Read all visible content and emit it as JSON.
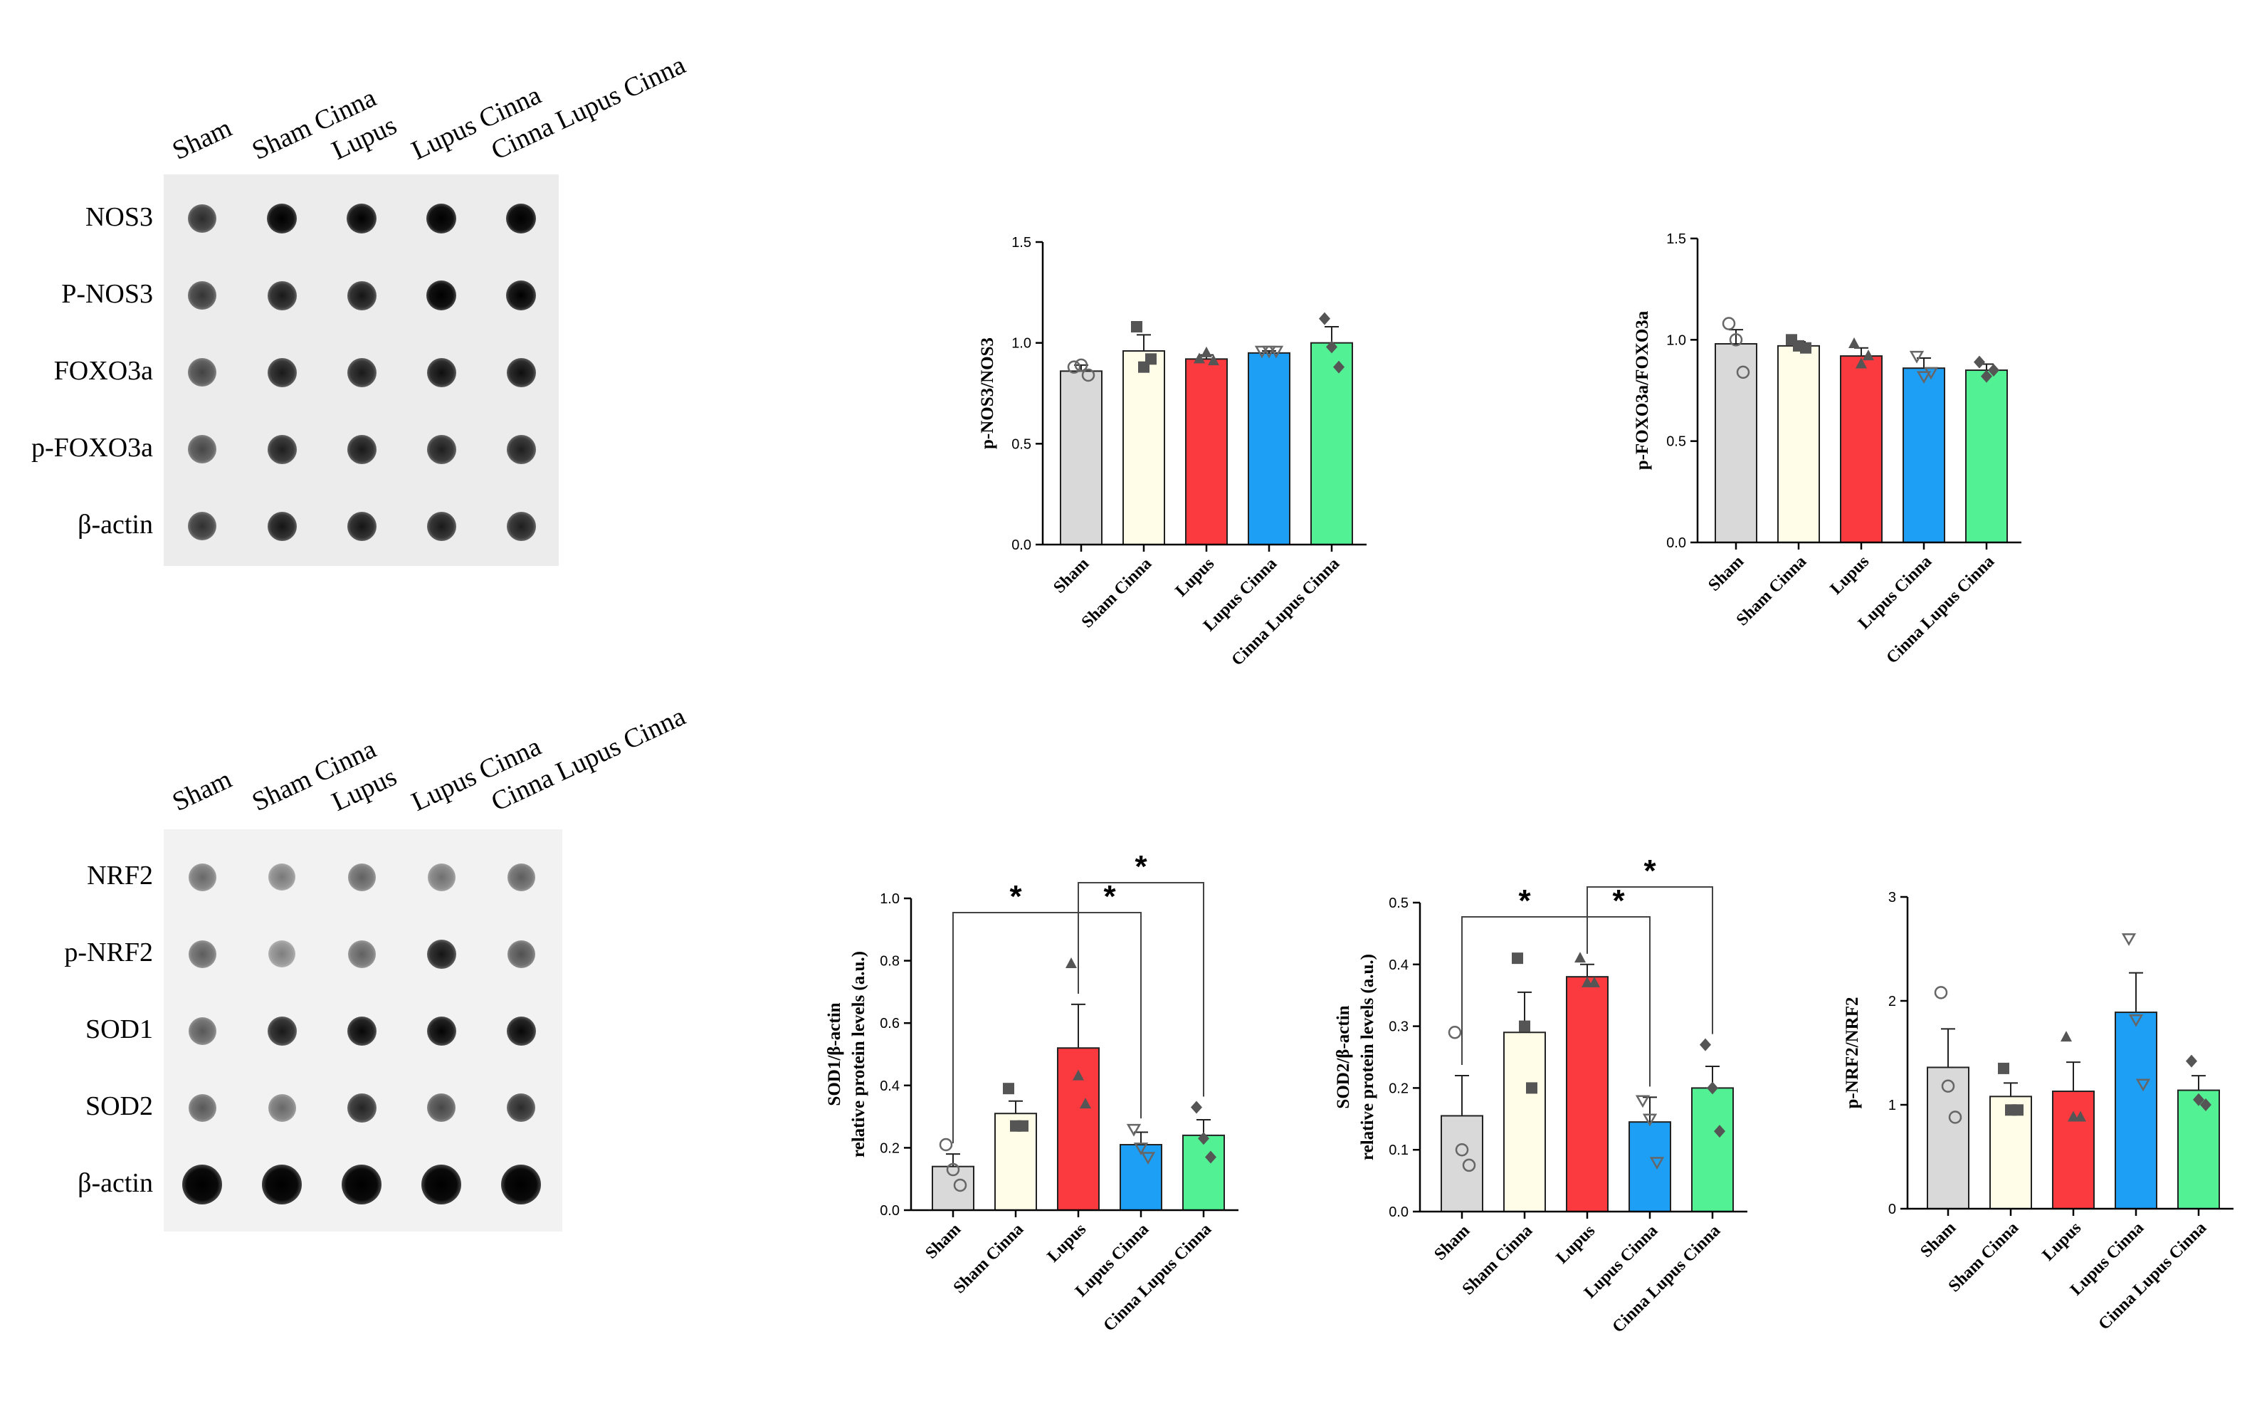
{
  "blots": [
    {
      "id": "blot-top",
      "columns": [
        "Sham",
        "Sham Cinna",
        "Lupus",
        "Lupus Cinna",
        "Cinna Lupus Cinna"
      ],
      "rows": [
        "NOS3",
        "P-NOS3",
        "FOXO3a",
        "p-FOXO3a",
        "β-actin"
      ],
      "background": "#ececec",
      "intensity": [
        [
          0.72,
          0.95,
          0.92,
          0.97,
          0.97
        ],
        [
          0.68,
          0.8,
          0.82,
          0.97,
          0.93
        ],
        [
          0.62,
          0.8,
          0.8,
          0.85,
          0.85
        ],
        [
          0.6,
          0.78,
          0.8,
          0.78,
          0.78
        ],
        [
          0.7,
          0.82,
          0.82,
          0.8,
          0.78
        ]
      ]
    },
    {
      "id": "blot-bottom",
      "columns": [
        "Sham",
        "Sham Cinna",
        "Lupus",
        "Lupus Cinna",
        "Cinna Lupus Cinna"
      ],
      "rows": [
        "NRF2",
        "p-NRF2",
        "SOD1",
        "SOD2",
        "β-actin"
      ],
      "background": "#f2f2f2",
      "intensity": [
        [
          0.45,
          0.38,
          0.48,
          0.42,
          0.5
        ],
        [
          0.5,
          0.35,
          0.48,
          0.82,
          0.55
        ],
        [
          0.52,
          0.8,
          0.88,
          0.9,
          0.88
        ],
        [
          0.52,
          0.45,
          0.75,
          0.6,
          0.72
        ],
        [
          1.0,
          1.0,
          1.0,
          1.0,
          1.0
        ]
      ]
    }
  ],
  "colors": {
    "Sham": "#d9d9d9",
    "Sham Cinna": "#fffde7",
    "Lupus": "#fb3a3f",
    "Lupus Cinna": "#1e9ff6",
    "Cinna Lupus Cinna": "#52f294"
  },
  "chart_data": [
    {
      "id": "chart-pnos3",
      "type": "bar",
      "title": "",
      "ylabel": [
        "p-NOS3/NOS3"
      ],
      "categories": [
        "Sham",
        "Sham Cinna",
        "Lupus",
        "Lupus Cinna",
        "Cinna Lupus Cinna"
      ],
      "values": [
        0.86,
        0.96,
        0.92,
        0.95,
        1.0
      ],
      "errors": [
        0.03,
        0.08,
        0.02,
        0.01,
        0.08
      ],
      "points": [
        [
          0.88,
          0.89,
          0.84
        ],
        [
          1.08,
          0.88,
          0.92
        ],
        [
          0.92,
          0.95,
          0.91
        ],
        [
          0.96,
          0.96,
          0.96
        ],
        [
          1.12,
          0.98,
          0.88
        ]
      ],
      "markers": [
        "circle",
        "square",
        "triangle",
        "triangle-down",
        "diamond"
      ],
      "ylim": [
        0,
        1.5
      ],
      "yticks": [
        "0.0",
        "0.5",
        "1.0",
        "1.5"
      ],
      "significance": []
    },
    {
      "id": "chart-pfoxo3a",
      "type": "bar",
      "title": "",
      "ylabel": [
        "p-FOXO3a/FOXO3a"
      ],
      "categories": [
        "Sham",
        "Sham Cinna",
        "Lupus",
        "Lupus Cinna",
        "Cinna Lupus Cinna"
      ],
      "values": [
        0.98,
        0.97,
        0.92,
        0.86,
        0.85
      ],
      "errors": [
        0.07,
        0.02,
        0.04,
        0.05,
        0.03
      ],
      "points": [
        [
          1.08,
          1.0,
          0.84
        ],
        [
          1.0,
          0.97,
          0.96
        ],
        [
          0.98,
          0.88,
          0.92
        ],
        [
          0.92,
          0.82,
          0.84
        ],
        [
          0.89,
          0.82,
          0.85
        ]
      ],
      "markers": [
        "circle",
        "square",
        "triangle",
        "triangle-down",
        "diamond"
      ],
      "ylim": [
        0,
        1.5
      ],
      "yticks": [
        "0.0",
        "0.5",
        "1.0",
        "1.5"
      ],
      "significance": []
    },
    {
      "id": "chart-sod1",
      "type": "bar",
      "title": "",
      "ylabel": [
        "SOD1/β-actin",
        "relative protein levels (a.u.)"
      ],
      "categories": [
        "Sham",
        "Sham Cinna",
        "Lupus",
        "Lupus Cinna",
        "Cinna Lupus Cinna"
      ],
      "values": [
        0.14,
        0.31,
        0.52,
        0.21,
        0.24
      ],
      "errors": [
        0.04,
        0.04,
        0.14,
        0.04,
        0.05
      ],
      "points": [
        [
          0.21,
          0.13,
          0.08
        ],
        [
          0.39,
          0.27,
          0.27
        ],
        [
          0.79,
          0.43,
          0.34
        ],
        [
          0.26,
          0.2,
          0.17
        ],
        [
          0.33,
          0.23,
          0.17
        ]
      ],
      "markers": [
        "circle",
        "square",
        "triangle",
        "triangle-down",
        "diamond"
      ],
      "ylim": [
        0,
        1.0
      ],
      "yticks": [
        "0.0",
        "0.2",
        "0.4",
        "0.6",
        "0.8",
        "1.0"
      ],
      "significance": [
        {
          "from": 0,
          "to": 2,
          "label": "*"
        },
        {
          "from": 2,
          "to": 3,
          "label": "*"
        },
        {
          "from": 2,
          "to": 4,
          "label": "*"
        }
      ]
    },
    {
      "id": "chart-sod2",
      "type": "bar",
      "title": "",
      "ylabel": [
        "SOD2/β-actin",
        "relative protein levels (a.u.)"
      ],
      "categories": [
        "Sham",
        "Sham Cinna",
        "Lupus",
        "Lupus Cinna",
        "Cinna Lupus Cinna"
      ],
      "values": [
        0.155,
        0.29,
        0.38,
        0.145,
        0.2
      ],
      "errors": [
        0.065,
        0.065,
        0.02,
        0.04,
        0.035
      ],
      "points": [
        [
          0.29,
          0.1,
          0.075
        ],
        [
          0.41,
          0.3,
          0.2
        ],
        [
          0.41,
          0.37,
          0.37
        ],
        [
          0.18,
          0.15,
          0.08
        ],
        [
          0.27,
          0.2,
          0.13
        ]
      ],
      "markers": [
        "circle",
        "square",
        "triangle",
        "triangle-down",
        "diamond"
      ],
      "ylim": [
        0,
        0.5
      ],
      "yticks": [
        "0.0",
        "0.1",
        "0.2",
        "0.3",
        "0.4",
        "0.5"
      ],
      "significance": [
        {
          "from": 0,
          "to": 2,
          "label": "*"
        },
        {
          "from": 2,
          "to": 3,
          "label": "*"
        },
        {
          "from": 2,
          "to": 4,
          "label": "*"
        }
      ]
    },
    {
      "id": "chart-pnrf2",
      "type": "bar",
      "title": "",
      "ylabel": [
        "p-NRF2/NRF2"
      ],
      "categories": [
        "Sham",
        "Sham Cinna",
        "Lupus",
        "Lupus Cinna",
        "Cinna Lupus Cinna"
      ],
      "values": [
        1.36,
        1.08,
        1.13,
        1.89,
        1.14
      ],
      "errors": [
        0.37,
        0.13,
        0.28,
        0.38,
        0.14
      ],
      "points": [
        [
          2.08,
          1.18,
          0.88
        ],
        [
          1.35,
          0.95,
          0.95
        ],
        [
          1.65,
          0.88,
          0.88
        ],
        [
          2.6,
          1.82,
          1.2
        ],
        [
          1.42,
          1.05,
          1.0
        ]
      ],
      "markers": [
        "circle",
        "square",
        "triangle",
        "triangle-down",
        "diamond"
      ],
      "ylim": [
        0,
        3
      ],
      "yticks": [
        "0",
        "1",
        "2",
        "3"
      ],
      "significance": []
    }
  ]
}
